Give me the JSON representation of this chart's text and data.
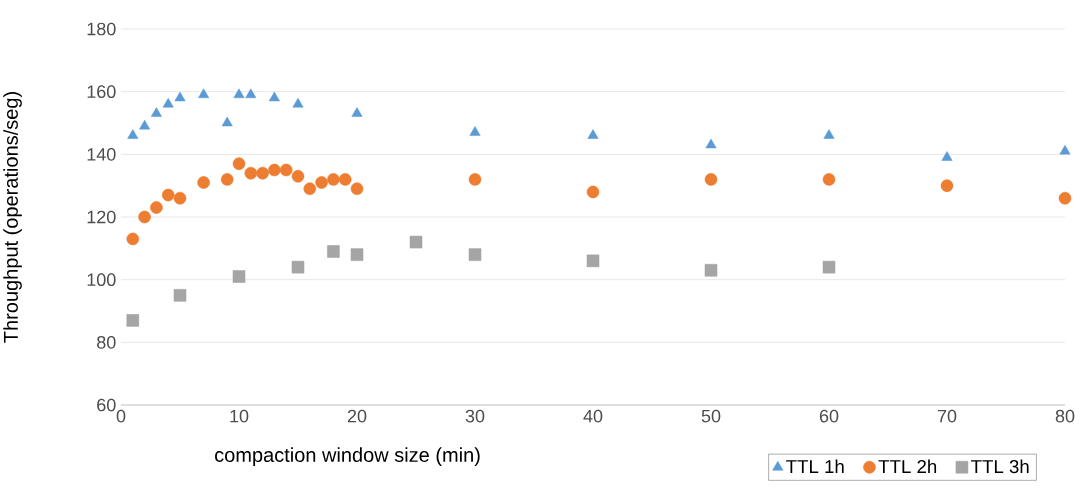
{
  "chart_data": {
    "type": "scatter",
    "xlabel": "compaction window size (min)",
    "ylabel": "Throughput (operations/seg)",
    "xlim": [
      0,
      80
    ],
    "xticks": [
      0,
      10,
      20,
      30,
      40,
      50,
      60,
      70,
      80
    ],
    "ylim": [
      60,
      180
    ],
    "yticks": [
      60,
      80,
      100,
      120,
      140,
      160,
      180
    ],
    "grid": "y",
    "legend": "bottom right",
    "series": [
      {
        "name": "TTL 1h",
        "color": "#5b9bd5",
        "marker": "triangle",
        "x": [
          1,
          2,
          3,
          4,
          5,
          7,
          9,
          10,
          11,
          13,
          15,
          20,
          30,
          40,
          50,
          60,
          70,
          80
        ],
        "values": [
          146,
          149,
          153,
          156,
          158,
          159,
          150,
          159,
          159,
          158,
          156,
          153,
          147,
          146,
          143,
          146,
          139,
          141
        ]
      },
      {
        "name": "TTL 2h",
        "color": "#ed7d31",
        "marker": "circle",
        "x": [
          1,
          2,
          3,
          4,
          5,
          7,
          9,
          10,
          11,
          12,
          13,
          14,
          15,
          16,
          17,
          18,
          19,
          20,
          30,
          40,
          50,
          60,
          70,
          80
        ],
        "values": [
          113,
          120,
          123,
          127,
          126,
          131,
          132,
          137,
          134,
          134,
          135,
          135,
          133,
          129,
          131,
          132,
          132,
          129,
          132,
          128,
          132,
          132,
          130,
          126
        ]
      },
      {
        "name": "TTL 3h",
        "color": "#a5a5a5",
        "marker": "square",
        "x": [
          1,
          5,
          10,
          15,
          18,
          20,
          25,
          30,
          40,
          50,
          60
        ],
        "values": [
          87,
          95,
          101,
          104,
          109,
          108,
          112,
          108,
          106,
          103,
          104
        ]
      }
    ]
  }
}
